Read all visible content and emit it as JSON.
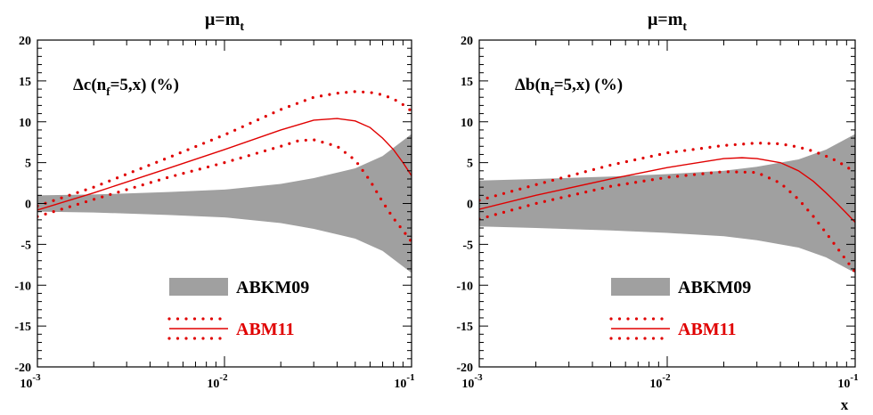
{
  "chart_data": [
    {
      "type": "line",
      "title_base": "μ=m",
      "title_sub": "t",
      "annotation": {
        "prefix": "Δc(n",
        "sub": "f",
        "suffix": "=5,x) (%)"
      },
      "xlabel": "",
      "xscale": "log",
      "xlim": [
        0.001,
        0.1
      ],
      "ylim": [
        -20,
        20
      ],
      "yticks": [
        "-20",
        "-15",
        "-10",
        "-5",
        "0",
        "5",
        "10",
        "15",
        "20"
      ],
      "xticks": [
        {
          "base": "10",
          "exp": "-3",
          "value": 0.001
        },
        {
          "base": "10",
          "exp": "-2",
          "value": 0.01
        },
        {
          "base": "10",
          "exp": "-1",
          "value": 0.1
        }
      ],
      "legend": [
        "ABKM09",
        "ABM11"
      ],
      "band": {
        "name": "ABKM09",
        "color": "#a0a0a0",
        "x": [
          0.001,
          0.002,
          0.005,
          0.01,
          0.02,
          0.03,
          0.05,
          0.07,
          0.1
        ],
        "upper": [
          1.0,
          1.1,
          1.4,
          1.7,
          2.4,
          3.1,
          4.3,
          5.8,
          8.5
        ],
        "lower": [
          -1.0,
          -1.1,
          -1.4,
          -1.7,
          -2.4,
          -3.1,
          -4.3,
          -5.8,
          -8.5
        ]
      },
      "series": [
        {
          "name": "ABM11",
          "style": "solid",
          "color": "#e00000",
          "x": [
            0.001,
            0.002,
            0.005,
            0.01,
            0.02,
            0.03,
            0.04,
            0.05,
            0.06,
            0.07,
            0.08,
            0.09,
            0.1
          ],
          "y": [
            -0.8,
            1.3,
            4.3,
            6.6,
            9.0,
            10.2,
            10.4,
            10.1,
            9.3,
            8.0,
            6.6,
            5.0,
            3.4
          ]
        },
        {
          "style": "dotted",
          "color": "#e00000",
          "x": [
            0.001,
            0.002,
            0.005,
            0.01,
            0.02,
            0.03,
            0.04,
            0.05,
            0.06,
            0.07,
            0.08,
            0.09,
            0.1
          ],
          "y": [
            -0.3,
            2.0,
            5.6,
            8.4,
            11.5,
            13.0,
            13.5,
            13.7,
            13.6,
            13.3,
            12.8,
            12.1,
            11.3
          ]
        },
        {
          "style": "dotted",
          "color": "#e00000",
          "x": [
            0.001,
            0.002,
            0.005,
            0.01,
            0.02,
            0.025,
            0.03,
            0.04,
            0.05,
            0.06,
            0.07,
            0.08,
            0.09,
            0.1
          ],
          "y": [
            -1.6,
            0.5,
            3.2,
            5.0,
            7.0,
            7.7,
            7.8,
            7.0,
            5.3,
            2.8,
            0.2,
            -1.8,
            -3.3,
            -4.7
          ]
        }
      ]
    },
    {
      "type": "line",
      "title_base": "μ=m",
      "title_sub": "t",
      "annotation": {
        "prefix": "Δb(n",
        "sub": "f",
        "suffix": "=5,x) (%)"
      },
      "xlabel": "x",
      "xscale": "log",
      "xlim": [
        0.001,
        0.1
      ],
      "ylim": [
        -20,
        20
      ],
      "yticks": [
        "-20",
        "-15",
        "-10",
        "-5",
        "0",
        "5",
        "10",
        "15",
        "20"
      ],
      "xticks": [
        {
          "base": "10",
          "exp": "-3",
          "value": 0.001
        },
        {
          "base": "10",
          "exp": "-2",
          "value": 0.01
        },
        {
          "base": "10",
          "exp": "-1",
          "value": 0.1
        }
      ],
      "legend": [
        "ABKM09",
        "ABM11"
      ],
      "band": {
        "name": "ABKM09",
        "color": "#a0a0a0",
        "x": [
          0.001,
          0.002,
          0.005,
          0.01,
          0.02,
          0.03,
          0.05,
          0.07,
          0.1
        ],
        "upper": [
          2.8,
          3.0,
          3.3,
          3.6,
          4.0,
          4.5,
          5.4,
          6.6,
          8.5
        ],
        "lower": [
          -2.8,
          -3.0,
          -3.3,
          -3.6,
          -4.0,
          -4.5,
          -5.4,
          -6.6,
          -8.5
        ]
      },
      "series": [
        {
          "name": "ABM11",
          "style": "solid",
          "color": "#e00000",
          "x": [
            0.001,
            0.002,
            0.005,
            0.01,
            0.02,
            0.025,
            0.03,
            0.04,
            0.05,
            0.06,
            0.07,
            0.08,
            0.09,
            0.1
          ],
          "y": [
            -0.7,
            1.0,
            3.0,
            4.4,
            5.5,
            5.6,
            5.5,
            5.0,
            4.0,
            2.7,
            1.3,
            0.0,
            -1.2,
            -2.3
          ]
        },
        {
          "style": "dotted",
          "color": "#e00000",
          "x": [
            0.001,
            0.002,
            0.005,
            0.01,
            0.02,
            0.03,
            0.04,
            0.05,
            0.06,
            0.07,
            0.08,
            0.09,
            0.1
          ],
          "y": [
            0.4,
            2.3,
            4.7,
            6.2,
            7.1,
            7.4,
            7.3,
            6.9,
            6.4,
            5.8,
            5.2,
            4.5,
            3.8
          ]
        },
        {
          "style": "dotted",
          "color": "#e00000",
          "x": [
            0.001,
            0.002,
            0.005,
            0.01,
            0.02,
            0.03,
            0.04,
            0.05,
            0.06,
            0.07,
            0.08,
            0.09,
            0.1
          ],
          "y": [
            -1.9,
            0.0,
            2.1,
            3.2,
            3.9,
            3.8,
            2.5,
            0.5,
            -1.6,
            -3.6,
            -5.4,
            -7.0,
            -8.4
          ]
        }
      ]
    }
  ]
}
